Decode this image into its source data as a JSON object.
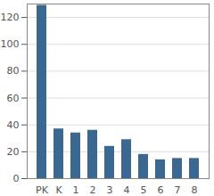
{
  "chart_data": {
    "type": "bar",
    "categories": [
      "PK",
      "K",
      "1",
      "2",
      "3",
      "4",
      "5",
      "6",
      "7",
      "8"
    ],
    "values": [
      129,
      37,
      34,
      36,
      24,
      29,
      18,
      14,
      15,
      15
    ],
    "color": "#3a6891",
    "ylim": [
      0,
      130
    ],
    "yticks": [
      0,
      20,
      40,
      60,
      80,
      100,
      120
    ],
    "grid": true
  }
}
